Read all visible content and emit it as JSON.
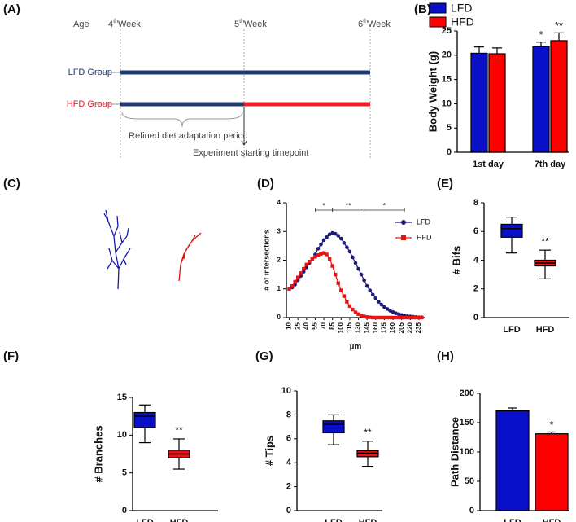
{
  "panel_labels": [
    "(A)",
    "(B)",
    "(C)",
    "(D)",
    "(E)",
    "(F)",
    "(G)",
    "(H)"
  ],
  "timeline": {
    "age_label": "Age",
    "weeks": [
      {
        "number": "4",
        "suffix": "th",
        "unit": "Week"
      },
      {
        "number": "5",
        "suffix": "th",
        "unit": "Week"
      },
      {
        "number": "6",
        "suffix": "th",
        "unit": "Week"
      }
    ],
    "groups": [
      "LFD Group",
      "HFD Group"
    ],
    "adaptation_note": "Refined diet adaptation period",
    "start_note": "Experiment starting timepoint"
  },
  "chart_data": [
    {
      "type": "bar",
      "categories": [
        "1st day",
        "7th day"
      ],
      "series": [
        {
          "name": "LFD",
          "color": "#0a10c8",
          "values": [
            20.4,
            21.8
          ],
          "errors": [
            1.3,
            0.9
          ],
          "significance": [
            null,
            "*"
          ]
        },
        {
          "name": "HFD",
          "color": "#ff0000",
          "values": [
            20.3,
            23
          ],
          "errors": [
            1.2,
            1.6
          ],
          "significance": [
            null,
            "**"
          ]
        }
      ],
      "ylabel": "Body Weight (g)",
      "ylim": [
        0,
        25
      ],
      "yticks": [
        0,
        5,
        10,
        15,
        20,
        25
      ],
      "legend": "top-left"
    },
    {
      "type": "line",
      "x": [
        10,
        15,
        20,
        25,
        30,
        35,
        40,
        45,
        50,
        55,
        60,
        65,
        70,
        75,
        80,
        85,
        90,
        95,
        100,
        105,
        110,
        115,
        120,
        125,
        130,
        135,
        140,
        145,
        150,
        155,
        160,
        165,
        170,
        175,
        180,
        185,
        190,
        195,
        200,
        205,
        210,
        215,
        220,
        225,
        230,
        235,
        240
      ],
      "series": [
        {
          "name": "LFD",
          "color": "#1c1c78",
          "marker": "circle",
          "values": [
            1.0,
            1.05,
            1.15,
            1.3,
            1.45,
            1.6,
            1.75,
            1.9,
            2.05,
            2.2,
            2.4,
            2.55,
            2.7,
            2.8,
            2.9,
            2.95,
            2.92,
            2.85,
            2.75,
            2.6,
            2.45,
            2.3,
            2.1,
            1.9,
            1.7,
            1.5,
            1.3,
            1.1,
            0.95,
            0.8,
            0.67,
            0.55,
            0.45,
            0.37,
            0.3,
            0.24,
            0.19,
            0.15,
            0.12,
            0.09,
            0.07,
            0.05,
            0.04,
            0.03,
            0.02,
            0.01,
            0.01
          ]
        },
        {
          "name": "HFD",
          "color": "#ee1111",
          "marker": "square",
          "values": [
            1.0,
            1.1,
            1.25,
            1.4,
            1.55,
            1.7,
            1.85,
            1.95,
            2.05,
            2.12,
            2.18,
            2.22,
            2.25,
            2.2,
            2.05,
            1.8,
            1.5,
            1.2,
            0.95,
            0.75,
            0.55,
            0.4,
            0.28,
            0.18,
            0.12,
            0.07,
            0.04,
            0.02,
            0.01,
            0,
            0,
            0,
            0,
            0,
            0,
            0,
            0,
            0,
            0,
            0,
            0,
            0,
            0,
            0,
            0,
            0,
            0
          ]
        }
      ],
      "xlabel": "µm",
      "ylabel": "# of intersections",
      "xlim": [
        5,
        245
      ],
      "xticks": [
        10,
        25,
        40,
        55,
        70,
        85,
        100,
        115,
        130,
        145,
        160,
        175,
        190,
        205,
        220,
        235
      ],
      "ylim": [
        0,
        4
      ],
      "yticks": [
        0,
        1,
        2,
        3,
        4
      ],
      "brackets": [
        {
          "x": [
            55,
            85
          ],
          "label": "*"
        },
        {
          "x": [
            85,
            140
          ],
          "label": "**"
        },
        {
          "x": [
            140,
            210
          ],
          "label": "*"
        }
      ],
      "legend": "upper-right"
    },
    {
      "type": "box",
      "categories": [
        "LFD",
        "HFD"
      ],
      "colors": [
        "#0a10c8",
        "#ee1111"
      ],
      "boxes": [
        {
          "min": 4.5,
          "q1": 5.6,
          "median": 6.2,
          "q3": 6.5,
          "max": 7
        },
        {
          "min": 2.7,
          "q1": 3.6,
          "median": 3.8,
          "q3": 4,
          "max": 4.7
        }
      ],
      "significance": [
        null,
        "**"
      ],
      "ylabel": "# Bifs",
      "ylim": [
        0,
        8
      ],
      "yticks": [
        0,
        2,
        4,
        6,
        8
      ]
    },
    {
      "type": "box",
      "categories": [
        "LFD",
        "HFD"
      ],
      "colors": [
        "#0a10c8",
        "#ee1111"
      ],
      "boxes": [
        {
          "min": 9,
          "q1": 11,
          "median": 12.5,
          "q3": 13,
          "max": 14
        },
        {
          "min": 5.5,
          "q1": 7,
          "median": 7.5,
          "q3": 8,
          "max": 9.5
        }
      ],
      "significance": [
        null,
        "**"
      ],
      "ylabel": "# Branches",
      "ylim": [
        0,
        15
      ],
      "yticks": [
        0,
        5,
        10,
        15
      ]
    },
    {
      "type": "box",
      "categories": [
        "LFD",
        "HFD"
      ],
      "colors": [
        "#0a10c8",
        "#ee1111"
      ],
      "boxes": [
        {
          "min": 5.5,
          "q1": 6.5,
          "median": 7.2,
          "q3": 7.5,
          "max": 8
        },
        {
          "min": 3.7,
          "q1": 4.5,
          "median": 4.8,
          "q3": 5,
          "max": 5.8
        }
      ],
      "significance": [
        null,
        "**"
      ],
      "ylabel": "# Tips",
      "ylim": [
        0,
        10
      ],
      "yticks": [
        0,
        2,
        4,
        6,
        8,
        10
      ]
    },
    {
      "type": "bar",
      "categories": [
        "LFD",
        "HFD"
      ],
      "values": [
        170,
        131
      ],
      "colors": [
        "#0a10c8",
        "#ff0000"
      ],
      "errors": [
        5,
        3
      ],
      "significance": [
        null,
        "*"
      ],
      "ylabel": "Path Distance",
      "ylim": [
        0,
        200
      ],
      "yticks": [
        0,
        50,
        100,
        150,
        200
      ]
    }
  ]
}
